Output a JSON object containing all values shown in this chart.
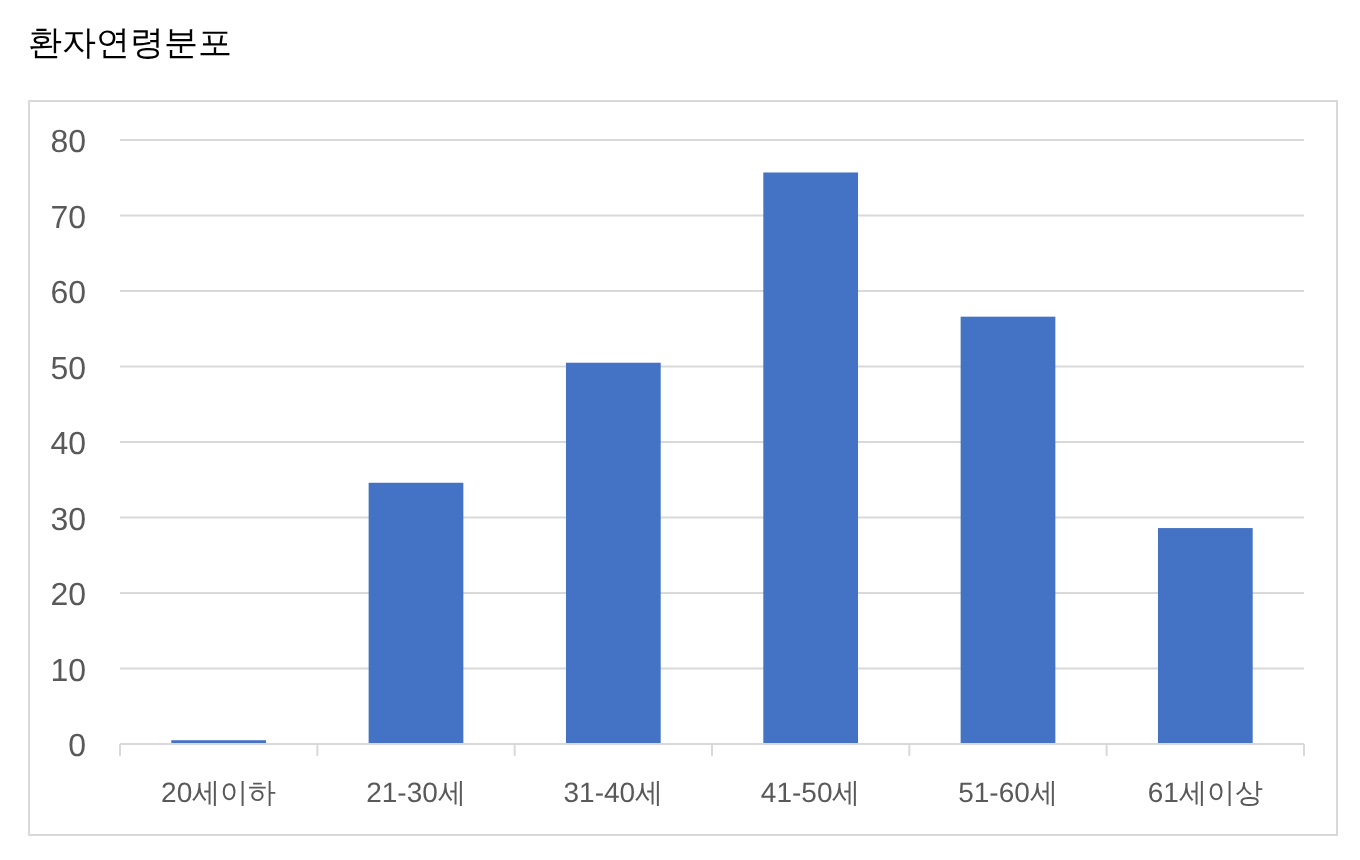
{
  "chart_data": {
    "type": "bar",
    "title": "환자연령분포",
    "categories": [
      "20세이하",
      "21-30세",
      "31-40세",
      "41-50세",
      "51-60세",
      "61세이상"
    ],
    "values": [
      0.5,
      34.6,
      50.5,
      75.7,
      56.6,
      28.6
    ],
    "color": "#4472c4",
    "ylim": [
      0,
      80
    ],
    "yticks": [
      0,
      10,
      20,
      30,
      40,
      50,
      60,
      70,
      80
    ],
    "grid": "y"
  }
}
